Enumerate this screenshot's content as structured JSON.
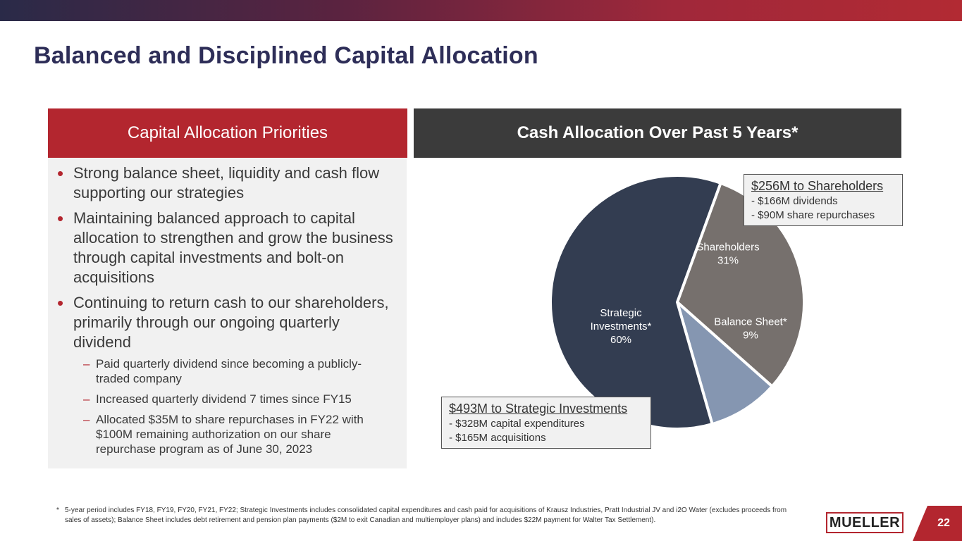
{
  "page": {
    "title": "Balanced and Disciplined Capital Allocation",
    "page_number": "22"
  },
  "left_panel": {
    "header": "Capital Allocation Priorities",
    "bullets": [
      "Strong balance sheet, liquidity and cash flow supporting our strategies",
      "Maintaining balanced approach to capital allocation to strengthen and grow the business through capital investments and bolt-on acquisitions",
      "Continuing to return cash to our shareholders, primarily through our ongoing quarterly dividend"
    ],
    "sub_bullets": [
      "Paid quarterly dividend since becoming a publicly-traded company",
      "Increased quarterly dividend 7 times since FY15",
      "Allocated $35M to share repurchases in FY22 with $100M remaining authorization on our share repurchase program as of June 30, 2023"
    ],
    "bullet_glyph": "•",
    "dash_glyph": "–"
  },
  "right_panel": {
    "header": "Cash Allocation Over Past 5 Years*"
  },
  "chart_data": {
    "type": "pie",
    "title": "Cash Allocation Over Past 5 Years*",
    "slices": [
      {
        "label_lines": [
          "Shareholders",
          "31%"
        ],
        "value": 31,
        "color": "#76706d",
        "text_color": "#ffffff"
      },
      {
        "label_lines": [
          "Balance Sheet*",
          "9%"
        ],
        "value": 9,
        "color": "#8596b1",
        "text_color": "#ffffff"
      },
      {
        "label_lines": [
          "Strategic",
          "Investments*",
          "60%"
        ],
        "value": 60,
        "color": "#333d51",
        "text_color": "#ffffff"
      }
    ],
    "start_angle_deg": 20,
    "direction": "clockwise"
  },
  "callouts": {
    "shareholders": {
      "title": "$256M to Shareholders",
      "lines": [
        "- $166M dividends",
        "- $90M share repurchases"
      ]
    },
    "strategic": {
      "title": "$493M to Strategic Investments",
      "lines": [
        "- $328M capital expenditures",
        "- $165M acquisitions"
      ]
    }
  },
  "footnote": {
    "marker": "*",
    "text": "5-year period includes FY18, FY19, FY20, FY21, FY22; Strategic Investments includes consolidated capital expenditures and cash paid for acquisitions of Krausz Industries, Pratt Industrial JV and i2O Water (excludes proceeds from sales of assets); Balance Sheet includes debt retirement and pension plan payments ($2M to exit Canadian and multiemployer plans) and includes $22M payment for Walter Tax Settlement)."
  },
  "logo": {
    "text": "MUELLER"
  }
}
